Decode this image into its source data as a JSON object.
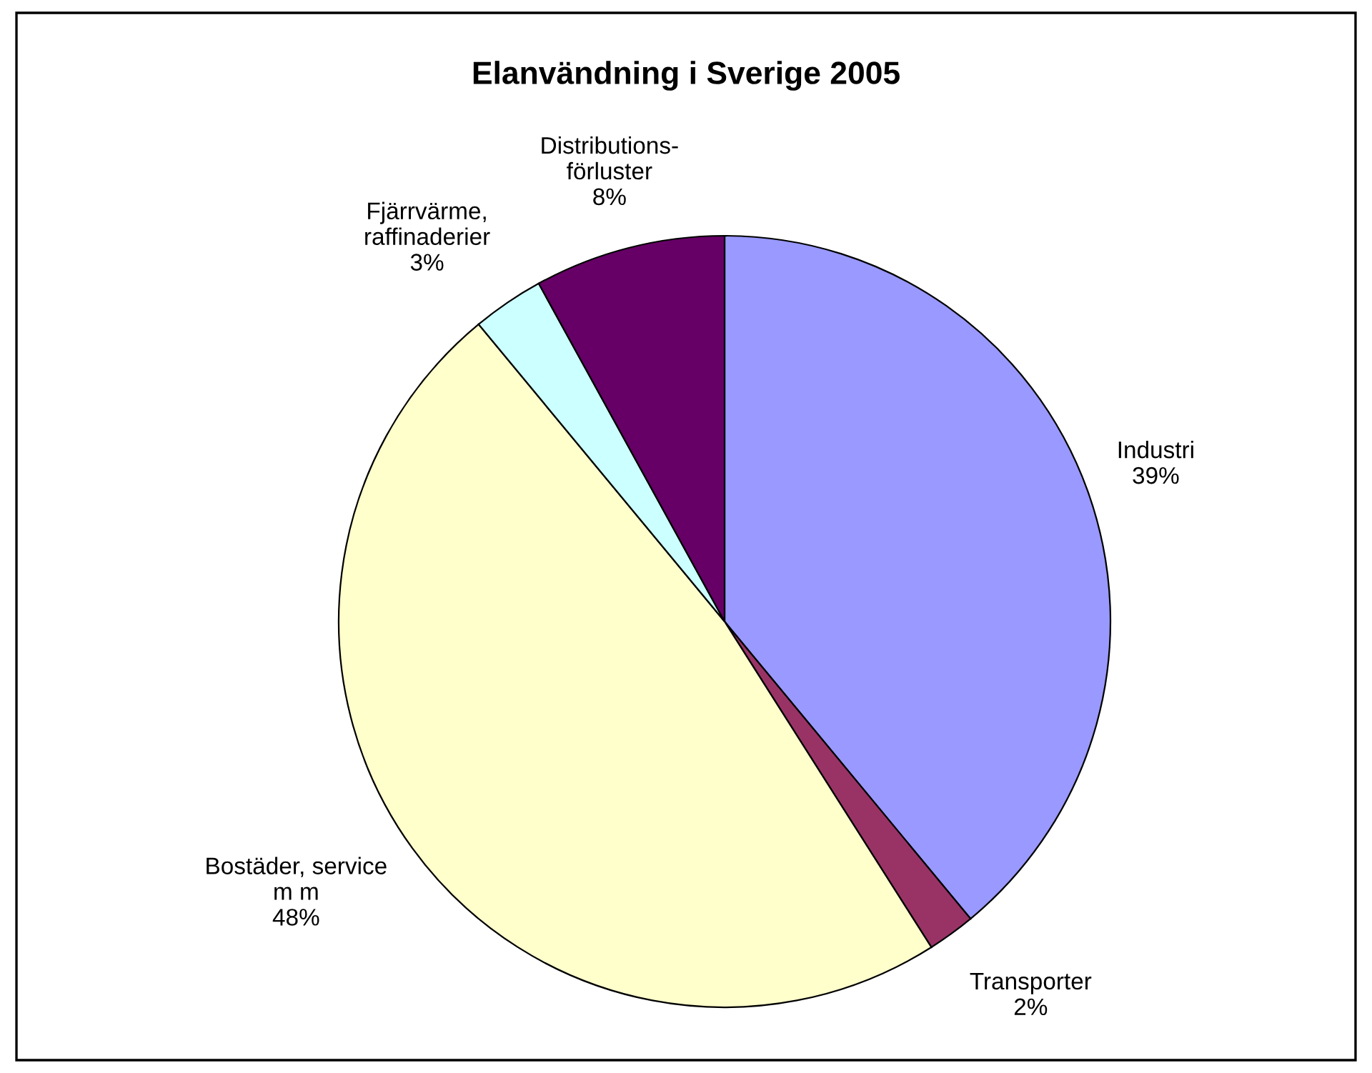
{
  "chart_data": {
    "type": "pie",
    "title": "Elanvändning i Sverige 2005",
    "categories": [
      "Industri",
      "Transporter",
      "Bostäder, service\nm m",
      "Fjärrvärme,\nraffinaderier",
      "Distributions-\nförluster"
    ],
    "values": [
      39,
      2,
      48,
      3,
      8
    ],
    "value_labels": [
      "39%",
      "2%",
      "48%",
      "3%",
      "8%"
    ],
    "colors": [
      "#9999ff",
      "#993366",
      "#ffffcc",
      "#ccffff",
      "#660066"
    ],
    "legend": false
  }
}
